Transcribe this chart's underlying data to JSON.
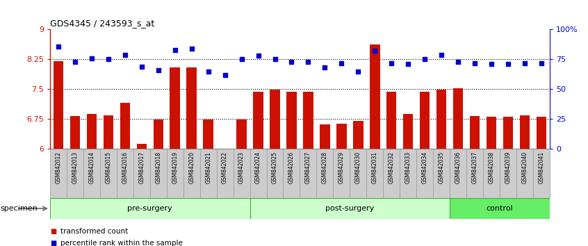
{
  "title": "GDS4345 / 243593_s_at",
  "samples": [
    "GSM842012",
    "GSM842013",
    "GSM842014",
    "GSM842015",
    "GSM842016",
    "GSM842017",
    "GSM842018",
    "GSM842019",
    "GSM842020",
    "GSM842021",
    "GSM842022",
    "GSM842023",
    "GSM842024",
    "GSM842025",
    "GSM842026",
    "GSM842027",
    "GSM842028",
    "GSM842029",
    "GSM842030",
    "GSM842031",
    "GSM842032",
    "GSM842033",
    "GSM842034",
    "GSM842035",
    "GSM842036",
    "GSM842037",
    "GSM842038",
    "GSM842039",
    "GSM842040",
    "GSM842041"
  ],
  "transformed_count": [
    8.2,
    6.82,
    6.88,
    6.84,
    7.16,
    6.12,
    6.74,
    8.05,
    8.05,
    6.74,
    6.01,
    6.74,
    7.44,
    7.48,
    7.44,
    7.44,
    6.62,
    6.64,
    6.7,
    8.62,
    7.44,
    6.88,
    7.44,
    7.48,
    7.52,
    6.83,
    6.81,
    6.81,
    6.84,
    6.81
  ],
  "percentile_rank": [
    86,
    73,
    76,
    75,
    79,
    69,
    66,
    83,
    84,
    65,
    62,
    75,
    78,
    75,
    73,
    73,
    68,
    72,
    65,
    82,
    72,
    71,
    75,
    79,
    73,
    72,
    71,
    71,
    72,
    72
  ],
  "group_info": [
    {
      "name": "pre-surgery",
      "start": 0,
      "end": 11
    },
    {
      "name": "post-surgery",
      "start": 12,
      "end": 23
    },
    {
      "name": "control",
      "start": 24,
      "end": 29
    }
  ],
  "ylim_left": [
    6,
    9
  ],
  "ylim_right": [
    0,
    100
  ],
  "yticks_left": [
    6,
    6.75,
    7.5,
    8.25,
    9
  ],
  "ytick_labels_left": [
    "6",
    "6.75",
    "7.5",
    "8.25",
    "9"
  ],
  "yticks_right": [
    0,
    25,
    50,
    75,
    100
  ],
  "ytick_labels_right": [
    "0",
    "25",
    "50",
    "75",
    "100%"
  ],
  "bar_color": "#cc1100",
  "dot_color": "#0000cc",
  "grid_color": "#000000",
  "bg_color": "#ffffff",
  "group_bg_color_light": "#ccffcc",
  "group_bg_color_bright": "#66ee66",
  "group_edge_color": "#44aa44",
  "xtick_bg": "#cccccc",
  "xtick_edge": "#999999",
  "bar_bottom": 6.0,
  "specimen_label": "specimen",
  "legend_bar_label": "transformed count",
  "legend_dot_label": "percentile rank within the sample"
}
